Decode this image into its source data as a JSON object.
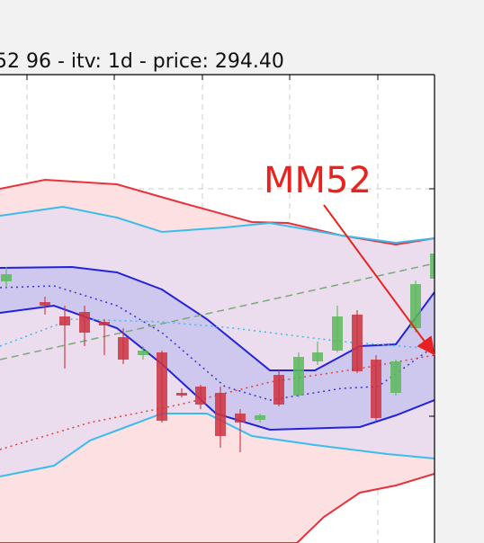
{
  "chart_data": {
    "type": "candlestick",
    "title": "52 96 - itv: 1d - price: 294.40",
    "annotation": "MM52",
    "annotation_color": "#e8231f",
    "xlim": [
      0,
      483
    ],
    "ylim": [
      0,
      521
    ],
    "xticks": [
      30,
      127,
      225,
      322,
      420
    ],
    "yticks": [
      141,
      394
    ],
    "grid": true,
    "up_color": "#5cb85c",
    "down_color": "#cc3340",
    "candles": {
      "x": [
        7,
        50,
        72,
        94,
        116,
        137,
        159,
        180,
        202,
        223,
        245,
        267,
        289,
        310,
        332,
        353,
        375,
        397,
        418,
        440,
        462,
        484
      ],
      "open": [
        291,
        268,
        252,
        257,
        246,
        229,
        209,
        212,
        167,
        174,
        167,
        144,
        137,
        187,
        164,
        202,
        214,
        254,
        204,
        167,
        239,
        294
      ],
      "high": [
        307,
        274,
        264,
        264,
        249,
        239,
        219,
        214,
        172,
        176,
        174,
        149,
        144,
        192,
        212,
        224,
        264,
        259,
        209,
        204,
        292,
        329
      ],
      "low": [
        284,
        254,
        194,
        219,
        209,
        199,
        204,
        134,
        162,
        149,
        106,
        101,
        134,
        152,
        162,
        198,
        212,
        189,
        136,
        164,
        234,
        292
      ],
      "close": [
        299,
        264,
        242,
        234,
        242,
        204,
        214,
        136,
        164,
        154,
        119,
        134,
        142,
        154,
        207,
        212,
        252,
        191,
        139,
        202,
        288,
        322
      ]
    },
    "series": [
      {
        "color": "#e8323a",
        "style": "solid",
        "width": 2,
        "x": [
          0,
          50,
          130,
          200,
          280,
          320,
          380,
          440,
          483
        ],
        "values": [
          394,
          404,
          399,
          379,
          357,
          356,
          342,
          332,
          339
        ]
      },
      {
        "color": "#3cbcec",
        "style": "solid",
        "width": 2,
        "x": [
          0,
          70,
          130,
          180,
          250,
          300,
          380,
          440,
          483
        ],
        "values": [
          364,
          374,
          362,
          346,
          351,
          356,
          342,
          334,
          339
        ]
      },
      {
        "color": "#2222dd",
        "style": "solid",
        "width": 2,
        "x": [
          0,
          80,
          130,
          180,
          230,
          300,
          350,
          400,
          440,
          483
        ],
        "values": [
          306,
          307,
          301,
          282,
          249,
          192,
          192,
          219,
          221,
          279
        ]
      },
      {
        "color": "#2222dd",
        "style": "solid",
        "width": 2,
        "x": [
          0,
          60,
          130,
          180,
          240,
          300,
          400,
          440,
          483
        ],
        "values": [
          256,
          264,
          239,
          199,
          144,
          126,
          129,
          142,
          159
        ]
      },
      {
        "color": "#3cbcec",
        "style": "solid",
        "width": 2,
        "x": [
          0,
          60,
          100,
          180,
          230,
          280,
          350,
          430,
          483
        ],
        "values": [
          74,
          86,
          114,
          144,
          144,
          119,
          109,
          99,
          94
        ]
      },
      {
        "color": "#e8323a",
        "style": "solid",
        "width": 2,
        "x": [
          0,
          330,
          360,
          400,
          440,
          483
        ],
        "values": [
          0,
          0,
          29,
          56,
          64,
          77
        ]
      },
      {
        "color": "#3333dd",
        "style": "dotted",
        "width": 1.5,
        "x": [
          0,
          60,
          130,
          180,
          250,
          300,
          380,
          420,
          483
        ],
        "values": [
          284,
          286,
          264,
          234,
          174,
          159,
          172,
          174,
          219
        ]
      },
      {
        "color": "#7aaa7a",
        "style": "dashed",
        "width": 1.5,
        "x": [
          0,
          483
        ],
        "values": [
          204,
          311
        ]
      },
      {
        "color": "#3cbcec",
        "style": "dotted",
        "width": 1.5,
        "x": [
          0,
          80,
          180,
          260,
          380,
          483
        ],
        "values": [
          219,
          249,
          246,
          239,
          224,
          216
        ]
      },
      {
        "color": "#e04040",
        "style": "dotted",
        "width": 1.5,
        "x": [
          0,
          100,
          200,
          300,
          400,
          483
        ],
        "values": [
          104,
          134,
          154,
          179,
          194,
          209
        ]
      }
    ],
    "bands": [
      {
        "between": [
          0,
          5
        ],
        "color": "#fde0e2"
      },
      {
        "between": [
          1,
          4
        ],
        "color": "#ebdcee"
      },
      {
        "between": [
          2,
          3
        ],
        "color": "#cfc8ee"
      }
    ]
  }
}
